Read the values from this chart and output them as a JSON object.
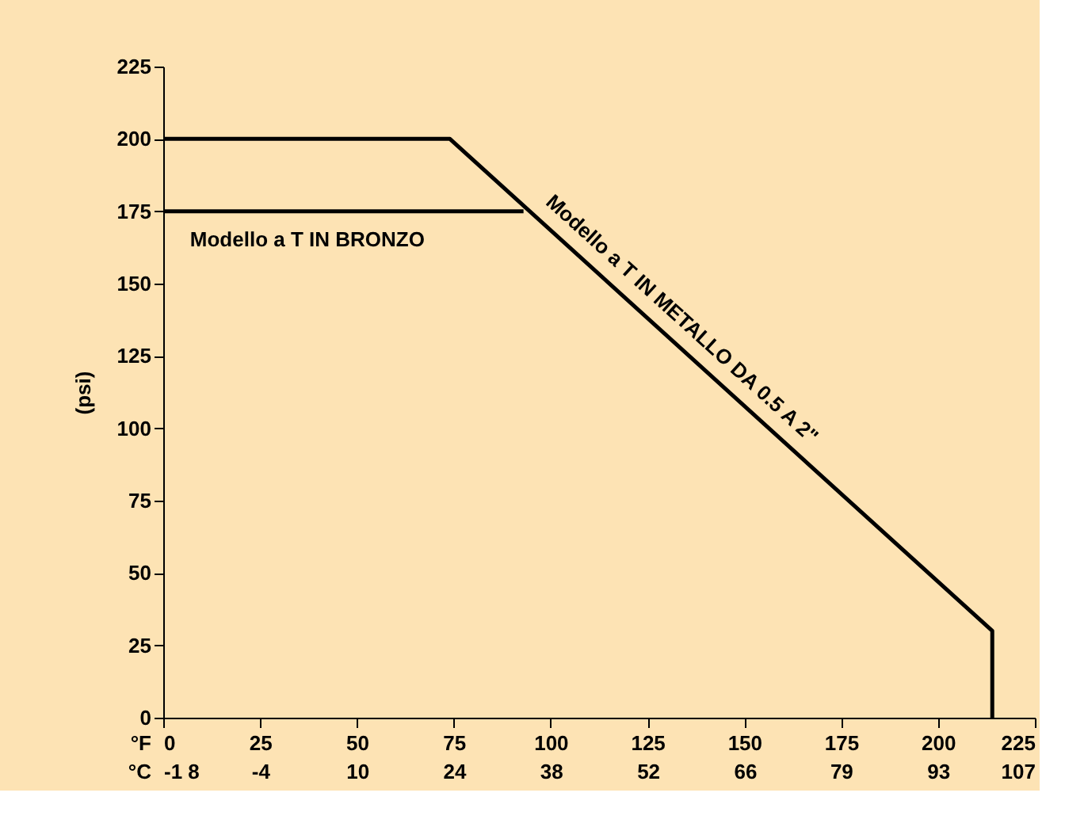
{
  "chart_data": {
    "type": "line",
    "ylabel": "(psi)",
    "xlabel": "°F",
    "x2label": "°C",
    "series": [
      {
        "name": "Modello a T IN METALLO DA 0.5 A 2\"",
        "color": "#000000",
        "x": [
          0,
          74,
          214,
          214
        ],
        "values": [
          200,
          200,
          30,
          0
        ]
      },
      {
        "name": "Modello a T IN BRONZO",
        "color": "#000000",
        "x": [
          0,
          93
        ],
        "values": [
          175,
          175
        ]
      }
    ],
    "xlim": [
      0,
      225
    ],
    "ylim": [
      0,
      225
    ],
    "xticks": [
      0,
      25,
      50,
      75,
      100,
      125,
      150,
      175,
      200,
      225
    ],
    "x2lim": [
      -17.8,
      107.2
    ],
    "x2ticks": [
      {
        "value": -17.8,
        "label": "-1 8"
      },
      {
        "value": -3.9,
        "label": "-4"
      },
      10,
      {
        "value": 23.9,
        "label": "24"
      },
      {
        "value": 37.8,
        "label": "38"
      },
      {
        "value": 51.7,
        "label": "52"
      },
      {
        "value": 65.6,
        "label": "66"
      },
      {
        "value": 79.4,
        "label": "79"
      },
      {
        "value": 93.3,
        "label": "93"
      },
      {
        "value": 107.2,
        "label": "107"
      }
    ],
    "yticks": [
      0,
      25,
      50,
      75,
      100,
      125,
      150,
      175,
      200,
      225
    ],
    "grid": false,
    "marker": "none",
    "line_style": "solid"
  }
}
